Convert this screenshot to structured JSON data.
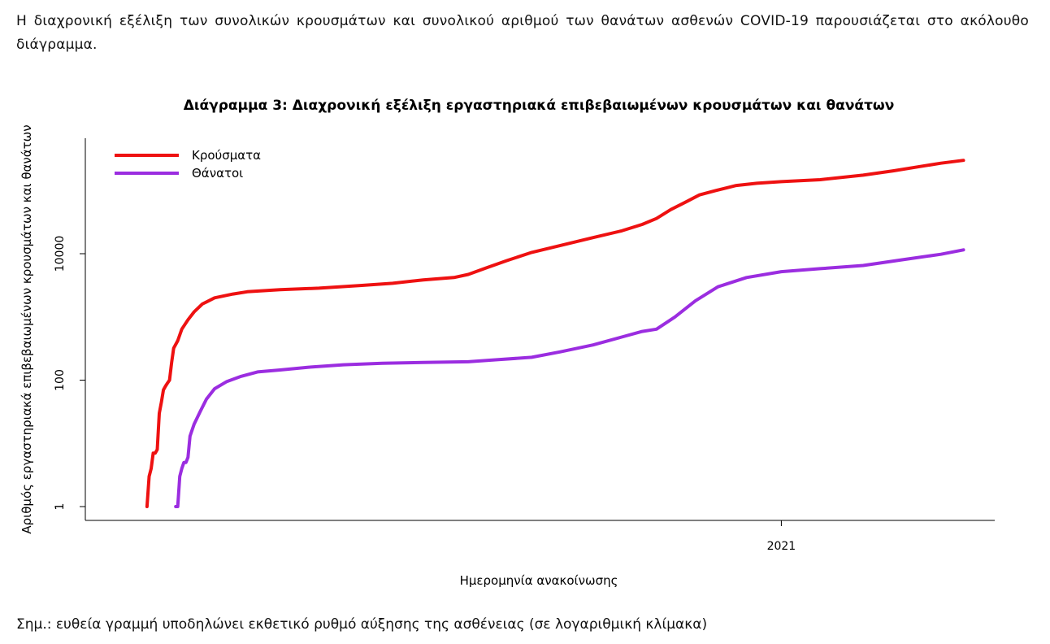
{
  "intro_text": "Η διαχρονική εξέλιξη των συνολικών κρουσμάτων και συνολικού αριθμού των θανάτων ασθενών COVID-19 παρουσιάζεται στο ακόλουθο διάγραμμα.",
  "note_text": "Σημ.: ευθεία γραμμή υποδηλώνει εκθετικό ρυθμό αύξησης της ασθένειας (σε λογαριθμική κλίμακα)",
  "chart_data": {
    "type": "line",
    "title": "Διάγραμμα 3: Διαχρονική εξέλιξη εργαστηριακά επιβεβαιωμένων κρουσμάτων και θανάτων",
    "xlabel": "Ημερομηνία ανακοίνωσης",
    "ylabel": "Αριθμός εργαστηριακά επιβεβαιωμένων κρουσμάτων και θανάτων",
    "y_scale": "log10",
    "ylim": [
      1,
      200000
    ],
    "xlim": [
      "2020-02-01",
      "2021-04-01"
    ],
    "y_ticks": [
      {
        "value": 1,
        "label": "1"
      },
      {
        "value": 100,
        "label": "100"
      },
      {
        "value": 10000,
        "label": "10000"
      }
    ],
    "x_ticks": [
      {
        "value": "2021-01-01",
        "label": "2021"
      }
    ],
    "grid": false,
    "legend_position": "top-left",
    "series": [
      {
        "name": "Κρούσματα",
        "color": "#ee1111",
        "points": [
          [
            "2020-02-26",
            1
          ],
          [
            "2020-02-27",
            3
          ],
          [
            "2020-02-28",
            4
          ],
          [
            "2020-02-29",
            7
          ],
          [
            "2020-03-01",
            7
          ],
          [
            "2020-03-02",
            8
          ],
          [
            "2020-03-03",
            30
          ],
          [
            "2020-03-04",
            45
          ],
          [
            "2020-03-05",
            70
          ],
          [
            "2020-03-06",
            80
          ],
          [
            "2020-03-07",
            90
          ],
          [
            "2020-03-08",
            100
          ],
          [
            "2020-03-09",
            190
          ],
          [
            "2020-03-10",
            320
          ],
          [
            "2020-03-12",
            420
          ],
          [
            "2020-03-14",
            640
          ],
          [
            "2020-03-17",
            900
          ],
          [
            "2020-03-20",
            1200
          ],
          [
            "2020-03-24",
            1600
          ],
          [
            "2020-03-30",
            2000
          ],
          [
            "2020-04-08",
            2300
          ],
          [
            "2020-04-15",
            2500
          ],
          [
            "2020-05-01",
            2700
          ],
          [
            "2020-05-20",
            2850
          ],
          [
            "2020-06-10",
            3150
          ],
          [
            "2020-06-25",
            3400
          ],
          [
            "2020-07-10",
            3850
          ],
          [
            "2020-07-25",
            4200
          ],
          [
            "2020-08-01",
            4700
          ],
          [
            "2020-08-10",
            6000
          ],
          [
            "2020-08-20",
            7800
          ],
          [
            "2020-09-01",
            10500
          ],
          [
            "2020-09-15",
            13500
          ],
          [
            "2020-10-01",
            18000
          ],
          [
            "2020-10-15",
            23000
          ],
          [
            "2020-10-25",
            29000
          ],
          [
            "2020-11-01",
            36000
          ],
          [
            "2020-11-08",
            50000
          ],
          [
            "2020-11-15",
            65000
          ],
          [
            "2020-11-22",
            85000
          ],
          [
            "2020-11-30",
            100000
          ],
          [
            "2020-12-10",
            120000
          ],
          [
            "2020-12-20",
            130000
          ],
          [
            "2021-01-01",
            138000
          ],
          [
            "2021-01-20",
            148000
          ],
          [
            "2021-02-10",
            175000
          ],
          [
            "2021-02-25",
            205000
          ],
          [
            "2021-03-10",
            240000
          ],
          [
            "2021-03-20",
            270000
          ],
          [
            "2021-03-31",
            300000
          ]
        ]
      },
      {
        "name": "Θάνατοι",
        "color": "#9b2de0",
        "points": [
          [
            "2020-03-11",
            1
          ],
          [
            "2020-03-12",
            1
          ],
          [
            "2020-03-13",
            3
          ],
          [
            "2020-03-14",
            4
          ],
          [
            "2020-03-15",
            5
          ],
          [
            "2020-03-16",
            5
          ],
          [
            "2020-03-17",
            6
          ],
          [
            "2020-03-18",
            13
          ],
          [
            "2020-03-20",
            20
          ],
          [
            "2020-03-23",
            32
          ],
          [
            "2020-03-26",
            50
          ],
          [
            "2020-03-30",
            73
          ],
          [
            "2020-04-05",
            95
          ],
          [
            "2020-04-12",
            115
          ],
          [
            "2020-04-20",
            135
          ],
          [
            "2020-05-01",
            145
          ],
          [
            "2020-05-15",
            160
          ],
          [
            "2020-06-01",
            175
          ],
          [
            "2020-06-20",
            185
          ],
          [
            "2020-07-10",
            190
          ],
          [
            "2020-08-01",
            195
          ],
          [
            "2020-08-15",
            210
          ],
          [
            "2020-09-01",
            230
          ],
          [
            "2020-09-15",
            280
          ],
          [
            "2020-10-01",
            360
          ],
          [
            "2020-10-15",
            480
          ],
          [
            "2020-10-25",
            590
          ],
          [
            "2020-11-01",
            640
          ],
          [
            "2020-11-10",
            1000
          ],
          [
            "2020-11-20",
            1800
          ],
          [
            "2020-12-01",
            3000
          ],
          [
            "2020-12-15",
            4200
          ],
          [
            "2021-01-01",
            5200
          ],
          [
            "2021-01-20",
            5800
          ],
          [
            "2021-02-10",
            6500
          ],
          [
            "2021-03-01",
            8000
          ],
          [
            "2021-03-20",
            9800
          ],
          [
            "2021-03-31",
            11500
          ]
        ]
      }
    ]
  }
}
